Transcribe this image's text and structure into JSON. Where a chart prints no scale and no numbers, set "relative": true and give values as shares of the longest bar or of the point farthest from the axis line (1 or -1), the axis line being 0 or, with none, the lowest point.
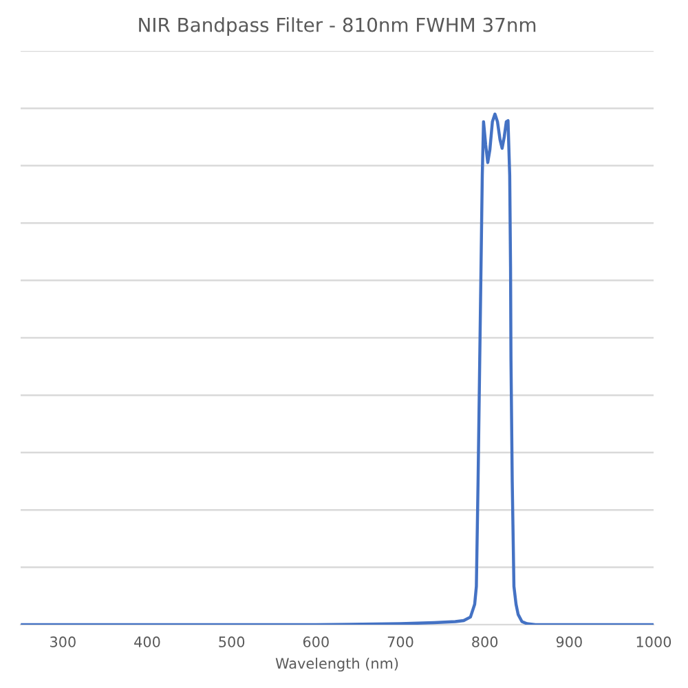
{
  "chart_data": {
    "type": "line",
    "title": "NIR Bandpass Filter - 810nm FWHM 37nm",
    "xlabel": "Wavelength (nm)",
    "relative": true,
    "xlim": [
      250,
      1000
    ],
    "xticks": [
      300,
      400,
      500,
      600,
      700,
      800,
      900,
      1000
    ],
    "grid": "y",
    "x": [
      252,
      300,
      400,
      500,
      600,
      700,
      740,
      765,
      775,
      783,
      788,
      790,
      792,
      794,
      796,
      797,
      798.5,
      801,
      803.5,
      806,
      809,
      812,
      815,
      818,
      820.5,
      823,
      825.5,
      827.5,
      829.5,
      830.5,
      831,
      832.5,
      834.5,
      837,
      839.5,
      844,
      850,
      860,
      900,
      1000
    ],
    "series": [
      {
        "color": "#4472c4",
        "values": [
          0,
          0,
          0,
          0,
          0,
          0.002,
          0.004,
          0.006,
          0.008,
          0.015,
          0.04,
          0.075,
          0.28,
          0.52,
          0.76,
          0.88,
          0.985,
          0.94,
          0.905,
          0.93,
          0.985,
          1.0,
          0.985,
          0.95,
          0.933,
          0.955,
          0.985,
          0.987,
          0.88,
          0.7,
          0.52,
          0.28,
          0.075,
          0.04,
          0.02,
          0.006,
          0.002,
          0,
          0,
          0
        ]
      }
    ]
  }
}
